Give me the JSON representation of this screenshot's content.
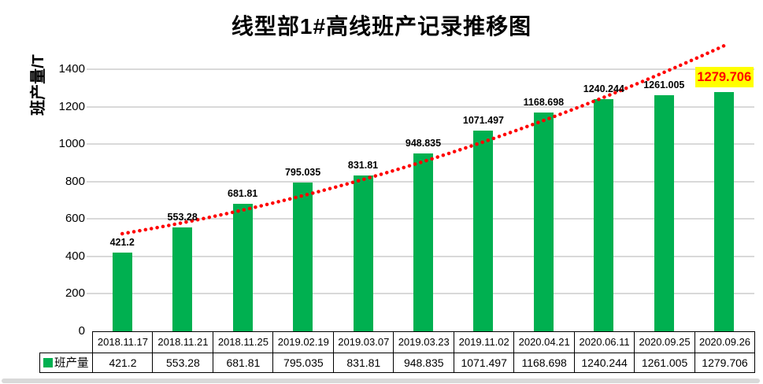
{
  "chart": {
    "title": "线型部1#高线班产记录推移图",
    "ylabel": "班产量/T",
    "legend_label": "班产量"
  },
  "chart_data": {
    "type": "bar",
    "title": "线型部1#高线班产记录推移图",
    "ylabel": "班产量/T",
    "xlabel": "",
    "categories": [
      "2018.11.17",
      "2018.11.21",
      "2018.11.25",
      "2019.02.19",
      "2019.03.07",
      "2019.03.23",
      "2019.11.02",
      "2020.04.21",
      "2020.06.11",
      "2020.09.25",
      "2020.09.26"
    ],
    "series": [
      {
        "name": "班产量",
        "values": [
          421.2,
          553.28,
          681.81,
          795.035,
          831.81,
          948.835,
          1071.497,
          1168.698,
          1240.244,
          1261.005,
          1279.706
        ]
      }
    ],
    "ylim": [
      0,
      1400
    ],
    "yticks": [
      0,
      200,
      400,
      600,
      800,
      1000,
      1200,
      1400
    ],
    "grid": true,
    "data_labels": true,
    "highlight_last_label": true,
    "legend_position": "table-left",
    "trendline": {
      "style": "dotted",
      "color": "#FF0000"
    },
    "colors": {
      "bar": "#00B050",
      "trend": "#FF0000",
      "grid": "#D9D9D9",
      "highlight_bg": "#FFFF00",
      "highlight_text": "#FF0000"
    }
  }
}
